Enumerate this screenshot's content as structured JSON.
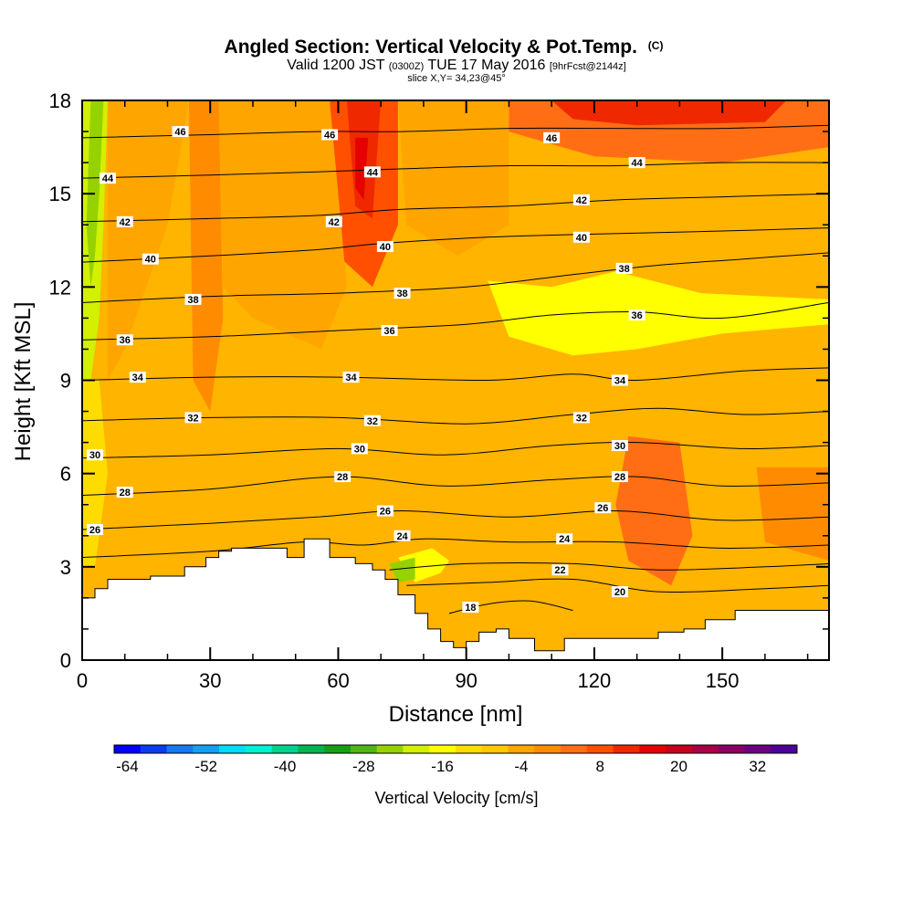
{
  "chart_data": {
    "type": "heatmap",
    "title": "Angled Section: Vertical Velocity & Pot.Temp.",
    "title_unit": "(C)",
    "subtitle_parts": [
      "Valid 1200 JST ",
      "(0300Z)",
      " TUE 17 May 2016 ",
      "[9hrFcst@2144z]"
    ],
    "subtitle2": "slice X,Y= 34,23@45°",
    "xlabel": "Distance [nm]",
    "ylabel": "Height [Kft MSL]",
    "xlim": [
      0,
      175
    ],
    "ylim": [
      0,
      18
    ],
    "xticks": [
      "0",
      "30",
      "60",
      "90",
      "120",
      "150"
    ],
    "yticks": [
      "0",
      "3",
      "6",
      "9",
      "12",
      "15",
      "18"
    ],
    "colorbar_label": "Vertical Velocity [cm/s]",
    "colorbar_ticks": [
      "-64",
      "-52",
      "-40",
      "-28",
      "-16",
      "-4",
      "8",
      "20",
      "32"
    ],
    "colorbar_colors": [
      "#0000ff",
      "#0a3cf0",
      "#1478f0",
      "#14a0f0",
      "#00dcf5",
      "#00f0d2",
      "#00d28c",
      "#00b450",
      "#14a014",
      "#50b414",
      "#96d200",
      "#d2f000",
      "#ffff00",
      "#ffdc00",
      "#ffc800",
      "#ffa500",
      "#ff8c00",
      "#ff6e14",
      "#ff5000",
      "#f02800",
      "#e60000",
      "#c8001e",
      "#aa0046",
      "#8c0064",
      "#6e0082",
      "#500096"
    ],
    "background_velocity_color": "#ffb400",
    "terrain": {
      "x": [
        0,
        3,
        3,
        6,
        6,
        10,
        10,
        16,
        16,
        24,
        24,
        29,
        29,
        32,
        32,
        35,
        35,
        38,
        38,
        48,
        48,
        52,
        52,
        58,
        58,
        64,
        64,
        68,
        68,
        71,
        71,
        74,
        74,
        78,
        78,
        81,
        81,
        84,
        84,
        87,
        87,
        90,
        90,
        93,
        93,
        97,
        97,
        100,
        100,
        106,
        106,
        110,
        110,
        113,
        113,
        125,
        125,
        135,
        135,
        141,
        141,
        146,
        146,
        153,
        153,
        159,
        159,
        175
      ],
      "y": [
        2.0,
        2.0,
        2.3,
        2.3,
        2.6,
        2.6,
        2.6,
        2.6,
        2.7,
        2.7,
        3.0,
        3.0,
        3.3,
        3.3,
        3.5,
        3.5,
        3.6,
        3.6,
        3.6,
        3.6,
        3.3,
        3.3,
        3.9,
        3.9,
        3.3,
        3.3,
        3.1,
        3.1,
        2.9,
        2.9,
        2.6,
        2.6,
        2.1,
        2.1,
        1.5,
        1.5,
        1.0,
        1.0,
        0.6,
        0.6,
        0.4,
        0.4,
        0.6,
        0.6,
        0.9,
        0.9,
        1.0,
        1.0,
        0.7,
        0.7,
        0.3,
        0.3,
        0.3,
        0.3,
        0.7,
        0.7,
        0.7,
        0.7,
        0.9,
        0.9,
        1.0,
        1.0,
        1.3,
        1.3,
        1.6,
        1.6,
        1.6,
        1.6
      ]
    },
    "velocity_regions": [
      {
        "label": "-20",
        "color": "#d2f000",
        "points": [
          [
            0,
            18
          ],
          [
            6,
            18
          ],
          [
            5,
            14
          ],
          [
            4,
            11
          ],
          [
            2,
            9
          ],
          [
            0,
            8.5
          ]
        ]
      },
      {
        "label": "-24",
        "color": "#96d200",
        "points": [
          [
            2,
            18
          ],
          [
            5,
            18
          ],
          [
            4,
            15
          ],
          [
            3,
            13
          ],
          [
            2,
            12
          ],
          [
            1,
            14
          ]
        ]
      },
      {
        "label": "-16",
        "color": "#ffff00",
        "points": [
          [
            95,
            12.2
          ],
          [
            110,
            12.0
          ],
          [
            125,
            12.5
          ],
          [
            145,
            11.8
          ],
          [
            175,
            11.6
          ],
          [
            175,
            10.8
          ],
          [
            150,
            10.5
          ],
          [
            130,
            10.0
          ],
          [
            115,
            9.8
          ],
          [
            100,
            10.4
          ]
        ]
      },
      {
        "label": "-14",
        "color": "#ffff00",
        "points": [
          [
            74,
            3.3
          ],
          [
            82,
            3.6
          ],
          [
            86,
            3.2
          ],
          [
            84,
            2.8
          ],
          [
            78,
            2.5
          ]
        ]
      },
      {
        "label": "-18",
        "color": "#96d200",
        "points": [
          [
            72,
            3.1
          ],
          [
            78,
            3.3
          ],
          [
            78,
            2.6
          ],
          [
            74,
            2.5
          ]
        ]
      },
      {
        "label": "-10",
        "color": "#ffdc00",
        "points": [
          [
            0,
            9
          ],
          [
            4,
            9
          ],
          [
            6,
            6
          ],
          [
            3,
            3
          ],
          [
            0,
            3
          ]
        ]
      },
      {
        "label": "10",
        "color": "#ff8c00",
        "points": [
          [
            25,
            18
          ],
          [
            32,
            18
          ],
          [
            33,
            11
          ],
          [
            30,
            8
          ],
          [
            26,
            9
          ]
        ]
      },
      {
        "label": "12",
        "color": "#ff6e14",
        "points": [
          [
            40,
            16
          ],
          [
            50,
            16.5
          ],
          [
            55,
            13
          ],
          [
            48,
            11.6
          ],
          [
            40,
            12.2
          ]
        ]
      },
      {
        "label": "16",
        "color": "#ff5000",
        "points": [
          [
            58,
            18
          ],
          [
            74,
            18
          ],
          [
            74,
            14
          ],
          [
            68,
            12
          ],
          [
            60,
            13
          ]
        ]
      },
      {
        "label": "20",
        "color": "#f02800",
        "points": [
          [
            62,
            18
          ],
          [
            70,
            18
          ],
          [
            68,
            14.2
          ],
          [
            64,
            14.6
          ]
        ]
      },
      {
        "label": "24",
        "color": "#e60000",
        "points": [
          [
            64,
            16.8
          ],
          [
            67,
            16.8
          ],
          [
            66,
            14.8
          ],
          [
            64,
            15.2
          ]
        ]
      },
      {
        "label": "14",
        "color": "#ff6e14",
        "points": [
          [
            100,
            18
          ],
          [
            175,
            18
          ],
          [
            175,
            16.5
          ],
          [
            150,
            16
          ],
          [
            120,
            16.2
          ],
          [
            100,
            17
          ]
        ]
      },
      {
        "label": "22",
        "color": "#f02800",
        "points": [
          [
            110,
            18
          ],
          [
            165,
            18
          ],
          [
            160,
            17.3
          ],
          [
            130,
            17.2
          ],
          [
            115,
            17.4
          ]
        ]
      },
      {
        "label": "12",
        "color": "#ff6e14",
        "points": [
          [
            128,
            7.2
          ],
          [
            140,
            7.0
          ],
          [
            143,
            4
          ],
          [
            138,
            2.4
          ],
          [
            128,
            3.2
          ],
          [
            125,
            5
          ]
        ]
      },
      {
        "label": "10",
        "color": "#ff8c00",
        "points": [
          [
            158,
            6.2
          ],
          [
            175,
            6.2
          ],
          [
            175,
            3.2
          ],
          [
            160,
            3.8
          ]
        ]
      },
      {
        "label": "8",
        "color": "#ffa500",
        "points": [
          [
            6,
            18
          ],
          [
            25,
            18
          ],
          [
            20,
            14
          ],
          [
            10,
            10
          ],
          [
            6,
            9
          ],
          [
            6,
            14
          ]
        ]
      },
      {
        "label": "8",
        "color": "#ffa500",
        "points": [
          [
            32,
            18
          ],
          [
            58,
            18
          ],
          [
            62,
            12
          ],
          [
            56,
            10
          ],
          [
            40,
            11
          ],
          [
            33,
            12
          ]
        ]
      },
      {
        "label": "8",
        "color": "#ffa500",
        "points": [
          [
            74,
            18
          ],
          [
            100,
            18
          ],
          [
            100,
            14
          ],
          [
            88,
            13
          ],
          [
            76,
            14
          ]
        ]
      }
    ],
    "theta_contours": [
      {
        "label": "18",
        "x": [
          86,
          95,
          105,
          115
        ],
        "y": [
          1.5,
          1.8,
          1.9,
          1.6
        ]
      },
      {
        "label": "20",
        "x": [
          76,
          95,
          115,
          135,
          160,
          175
        ],
        "y": [
          2.4,
          2.5,
          2.6,
          2.2,
          2.3,
          2.4
        ]
      },
      {
        "label": "22",
        "x": [
          72,
          90,
          115,
          135,
          160,
          175
        ],
        "y": [
          2.9,
          3.1,
          3.1,
          2.9,
          3.0,
          3.1
        ]
      },
      {
        "label": "24",
        "x": [
          0,
          30,
          52,
          66,
          80,
          100,
          125,
          150,
          175
        ],
        "y": [
          3.3,
          3.5,
          3.8,
          3.7,
          3.9,
          3.8,
          3.8,
          3.6,
          3.7
        ]
      },
      {
        "label": "26",
        "x": [
          0,
          30,
          55,
          75,
          100,
          125,
          150,
          175
        ],
        "y": [
          4.2,
          4.4,
          4.6,
          4.8,
          4.6,
          4.8,
          4.5,
          4.6
        ]
      },
      {
        "label": "28",
        "x": [
          0,
          30,
          60,
          85,
          110,
          130,
          150,
          175
        ],
        "y": [
          5.3,
          5.5,
          5.9,
          5.6,
          5.8,
          5.9,
          5.6,
          5.7
        ]
      },
      {
        "label": "30",
        "x": [
          0,
          30,
          60,
          85,
          110,
          130,
          155,
          175
        ],
        "y": [
          6.5,
          6.6,
          6.8,
          6.6,
          6.9,
          7.0,
          6.8,
          6.9
        ]
      },
      {
        "label": "32",
        "x": [
          0,
          30,
          60,
          90,
          115,
          135,
          155,
          175
        ],
        "y": [
          7.7,
          7.8,
          7.8,
          7.6,
          7.9,
          8.1,
          7.9,
          8.0
        ]
      },
      {
        "label": "34",
        "x": [
          0,
          30,
          60,
          95,
          115,
          130,
          155,
          175
        ],
        "y": [
          9.0,
          9.1,
          9.1,
          9.0,
          9.2,
          9.0,
          9.3,
          9.4
        ]
      },
      {
        "label": "36",
        "x": [
          0,
          30,
          60,
          90,
          110,
          130,
          150,
          175
        ],
        "y": [
          10.3,
          10.4,
          10.6,
          10.8,
          11.1,
          11.2,
          11.0,
          11.5
        ]
      },
      {
        "label": "38",
        "x": [
          0,
          30,
          60,
          90,
          115,
          135,
          155,
          175
        ],
        "y": [
          11.5,
          11.7,
          11.8,
          12.0,
          12.4,
          12.7,
          12.9,
          13.1
        ]
      },
      {
        "label": "40",
        "x": [
          0,
          30,
          55,
          70,
          95,
          120,
          150,
          175
        ],
        "y": [
          12.8,
          13.0,
          13.2,
          13.4,
          13.6,
          13.7,
          13.8,
          13.9
        ]
      },
      {
        "label": "42",
        "x": [
          0,
          30,
          55,
          75,
          100,
          125,
          150,
          175
        ],
        "y": [
          14.1,
          14.2,
          14.3,
          14.5,
          14.6,
          14.8,
          14.9,
          15.0
        ]
      },
      {
        "label": "44",
        "x": [
          0,
          30,
          55,
          75,
          100,
          125,
          150,
          175
        ],
        "y": [
          15.5,
          15.6,
          15.7,
          15.8,
          15.9,
          15.9,
          16.0,
          16.0
        ]
      },
      {
        "label": "46",
        "x": [
          0,
          30,
          55,
          75,
          100,
          125,
          150,
          175
        ],
        "y": [
          16.8,
          16.9,
          17.0,
          17.0,
          17.1,
          17.1,
          17.1,
          17.2
        ]
      }
    ],
    "contour_labels": [
      {
        "text": "46",
        "x": 23,
        "y": 17.0
      },
      {
        "text": "46",
        "x": 58,
        "y": 16.9
      },
      {
        "text": "46",
        "x": 110,
        "y": 16.8
      },
      {
        "text": "44",
        "x": 6,
        "y": 15.5
      },
      {
        "text": "44",
        "x": 68,
        "y": 15.7
      },
      {
        "text": "44",
        "x": 130,
        "y": 16.0
      },
      {
        "text": "42",
        "x": 10,
        "y": 14.1
      },
      {
        "text": "42",
        "x": 59,
        "y": 14.1
      },
      {
        "text": "42",
        "x": 117,
        "y": 14.8
      },
      {
        "text": "40",
        "x": 16,
        "y": 12.9
      },
      {
        "text": "40",
        "x": 71,
        "y": 13.3
      },
      {
        "text": "40",
        "x": 117,
        "y": 13.6
      },
      {
        "text": "38",
        "x": 26,
        "y": 11.6
      },
      {
        "text": "38",
        "x": 75,
        "y": 11.8
      },
      {
        "text": "38",
        "x": 127,
        "y": 12.6
      },
      {
        "text": "36",
        "x": 10,
        "y": 10.3
      },
      {
        "text": "36",
        "x": 72,
        "y": 10.6
      },
      {
        "text": "36",
        "x": 130,
        "y": 11.1
      },
      {
        "text": "34",
        "x": 13,
        "y": 9.1
      },
      {
        "text": "34",
        "x": 63,
        "y": 9.1
      },
      {
        "text": "34",
        "x": 126,
        "y": 9.0
      },
      {
        "text": "32",
        "x": 26,
        "y": 7.8
      },
      {
        "text": "32",
        "x": 68,
        "y": 7.7
      },
      {
        "text": "32",
        "x": 117,
        "y": 7.8
      },
      {
        "text": "30",
        "x": 3,
        "y": 6.6
      },
      {
        "text": "30",
        "x": 65,
        "y": 6.8
      },
      {
        "text": "30",
        "x": 126,
        "y": 6.9
      },
      {
        "text": "28",
        "x": 10,
        "y": 5.4
      },
      {
        "text": "28",
        "x": 61,
        "y": 5.9
      },
      {
        "text": "28",
        "x": 126,
        "y": 5.9
      },
      {
        "text": "26",
        "x": 3,
        "y": 4.2
      },
      {
        "text": "26",
        "x": 71,
        "y": 4.8
      },
      {
        "text": "26",
        "x": 122,
        "y": 4.9
      },
      {
        "text": "24",
        "x": 75,
        "y": 4.0
      },
      {
        "text": "24",
        "x": 113,
        "y": 3.9
      },
      {
        "text": "22",
        "x": 112,
        "y": 2.9
      },
      {
        "text": "20",
        "x": 126,
        "y": 2.2
      },
      {
        "text": "18",
        "x": 91,
        "y": 1.7
      }
    ]
  }
}
